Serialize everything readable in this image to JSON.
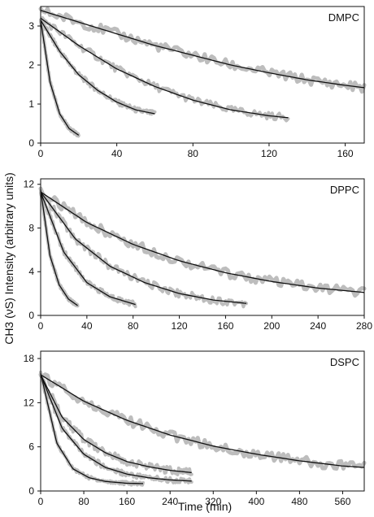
{
  "figure": {
    "ylabel": "CH3 (νS) Intensity (arbitrary units)",
    "xlabel": "Time (min)"
  },
  "chart_data": [
    {
      "type": "line",
      "panel": "DMPC",
      "xlim": [
        0,
        170
      ],
      "ylim": [
        0,
        3.5
      ],
      "xticks": [
        0,
        40,
        80,
        120,
        160
      ],
      "yticks": [
        0,
        1,
        2,
        3
      ],
      "series": [
        {
          "x": [
            0,
            5,
            10,
            15,
            20
          ],
          "y": [
            3.15,
            1.55,
            0.75,
            0.37,
            0.2
          ]
        },
        {
          "x": [
            0,
            10,
            20,
            30,
            40,
            50,
            60
          ],
          "y": [
            3.15,
            2.35,
            1.75,
            1.35,
            1.05,
            0.85,
            0.75
          ]
        },
        {
          "x": [
            0,
            20,
            40,
            60,
            80,
            100,
            120,
            130
          ],
          "y": [
            3.2,
            2.5,
            1.9,
            1.45,
            1.1,
            0.85,
            0.7,
            0.65
          ]
        },
        {
          "x": [
            0,
            20,
            40,
            60,
            80,
            100,
            120,
            140,
            160,
            170
          ],
          "y": [
            3.4,
            3.1,
            2.8,
            2.5,
            2.25,
            2.0,
            1.8,
            1.62,
            1.48,
            1.42
          ]
        }
      ]
    },
    {
      "type": "line",
      "panel": "DPPC",
      "xlim": [
        0,
        280
      ],
      "ylim": [
        0,
        12.5
      ],
      "xticks": [
        0,
        40,
        80,
        120,
        160,
        200,
        240,
        280
      ],
      "yticks": [
        0,
        4,
        8,
        12
      ],
      "series": [
        {
          "x": [
            0,
            8,
            16,
            24,
            32
          ],
          "y": [
            11.5,
            5.5,
            2.8,
            1.5,
            0.9
          ]
        },
        {
          "x": [
            0,
            20,
            40,
            60,
            82
          ],
          "y": [
            11.3,
            5.8,
            3.0,
            1.7,
            1.0
          ]
        },
        {
          "x": [
            0,
            30,
            60,
            90,
            120,
            150,
            178
          ],
          "y": [
            11.3,
            7.0,
            4.5,
            3.0,
            2.0,
            1.4,
            1.1
          ]
        },
        {
          "x": [
            0,
            40,
            80,
            120,
            160,
            200,
            240,
            280
          ],
          "y": [
            11.3,
            8.5,
            6.5,
            5.0,
            3.9,
            3.1,
            2.5,
            2.1
          ]
        }
      ]
    },
    {
      "type": "line",
      "panel": "DSPC",
      "xlim": [
        0,
        600
      ],
      "ylim": [
        0,
        19
      ],
      "xticks": [
        0,
        80,
        160,
        240,
        320,
        400,
        480,
        560
      ],
      "yticks": [
        0,
        6,
        12,
        18
      ],
      "series": [
        {
          "x": [
            0,
            30,
            60,
            90,
            120,
            160,
            190
          ],
          "y": [
            16.0,
            6.5,
            3.0,
            1.8,
            1.3,
            1.05,
            1.0
          ]
        },
        {
          "x": [
            0,
            40,
            80,
            120,
            160,
            200,
            240,
            280
          ],
          "y": [
            15.8,
            8.5,
            5.0,
            3.2,
            2.3,
            1.8,
            1.5,
            1.35
          ]
        },
        {
          "x": [
            0,
            40,
            80,
            120,
            160,
            200,
            240,
            280
          ],
          "y": [
            15.8,
            10.0,
            7.0,
            5.2,
            4.0,
            3.3,
            2.8,
            2.5
          ]
        },
        {
          "x": [
            0,
            80,
            160,
            240,
            320,
            400,
            480,
            560,
            600
          ],
          "y": [
            15.8,
            12.2,
            9.6,
            7.6,
            6.1,
            5.0,
            4.1,
            3.4,
            3.2
          ]
        }
      ]
    }
  ]
}
